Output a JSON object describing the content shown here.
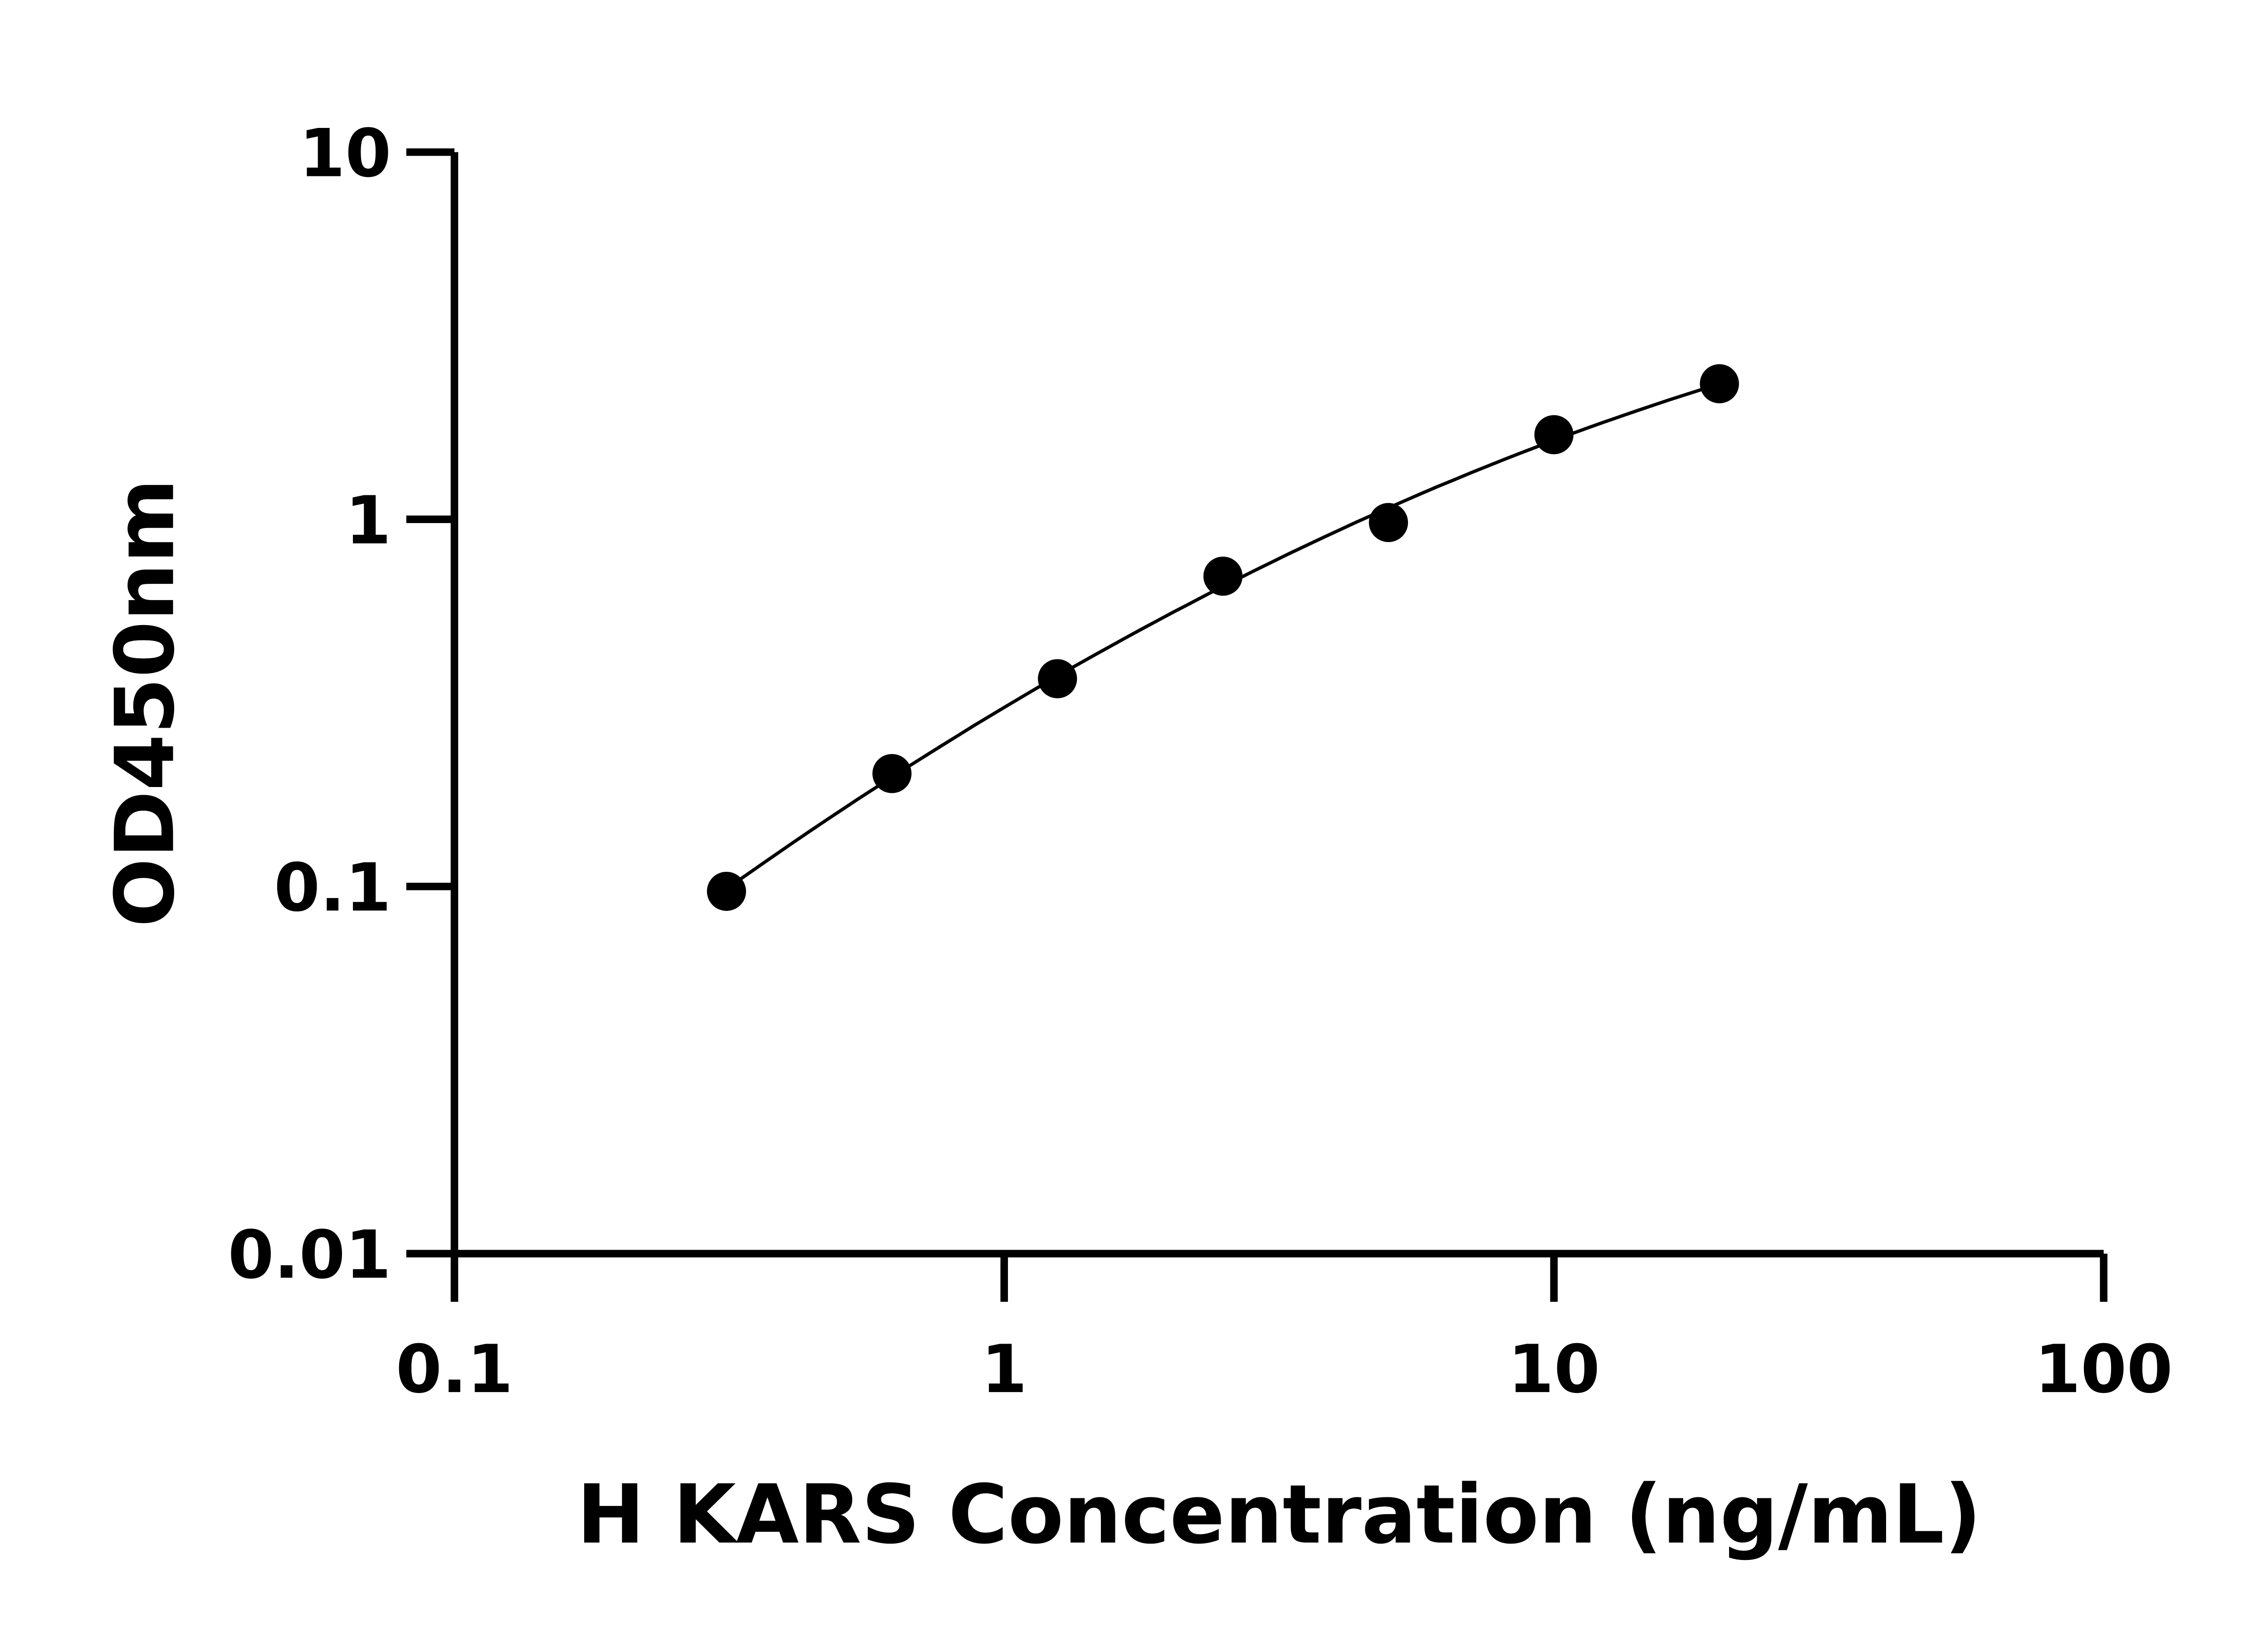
{
  "chart_data": {
    "type": "scatter",
    "xscale": "log",
    "yscale": "log",
    "xlabel": "H KARS Concentration (ng/mL)",
    "ylabel": "OD450nm",
    "xlim": [
      0.1,
      100
    ],
    "ylim": [
      0.01,
      10
    ],
    "xticks": [
      "0.1",
      "1",
      "10",
      "100"
    ],
    "yticks": [
      "0.01",
      "0.1",
      "1",
      "10"
    ],
    "grid": false,
    "fit_line": true,
    "marker_color": "#000000",
    "points": {
      "x": [
        0.3125,
        0.625,
        1.25,
        2.5,
        5,
        10,
        20
      ],
      "y": [
        0.097,
        0.203,
        0.368,
        0.7,
        0.98,
        1.7,
        2.34
      ]
    }
  }
}
